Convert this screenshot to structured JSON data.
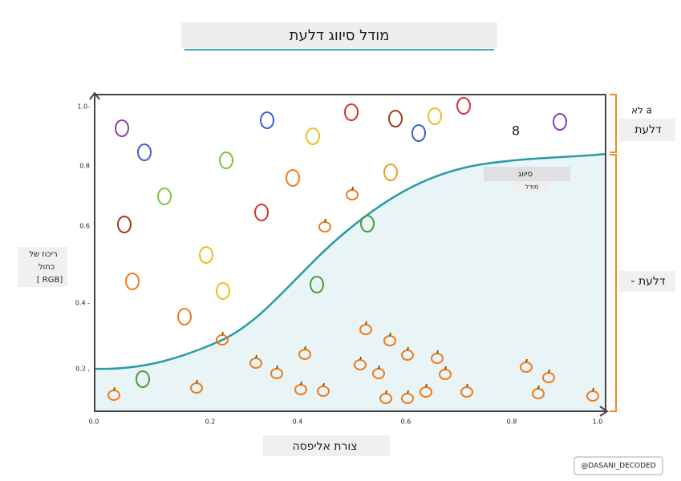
{
  "title": "מודל סיווג דלעת",
  "y_axis": {
    "label_lines": [
      "ריכוז של",
      "כחול",
      "[ RGB]"
    ],
    "ticks": [
      "1.0-",
      "0.8",
      "0.6",
      "0.4 -",
      "0.2 ,"
    ]
  },
  "x_axis": {
    "label": "צורת אליפסה",
    "ticks": [
      "0.0",
      "0.2",
      "0.4",
      "0.6",
      "0.8",
      "1.0"
    ]
  },
  "side_labels": {
    "top": [
      "לא a",
      "דלעת"
    ],
    "bottom": "- דלעת"
  },
  "curve_label": [
    "סיווג",
    "מודל"
  ],
  "marker": "8",
  "credit": "@DASANI_DECODED"
}
